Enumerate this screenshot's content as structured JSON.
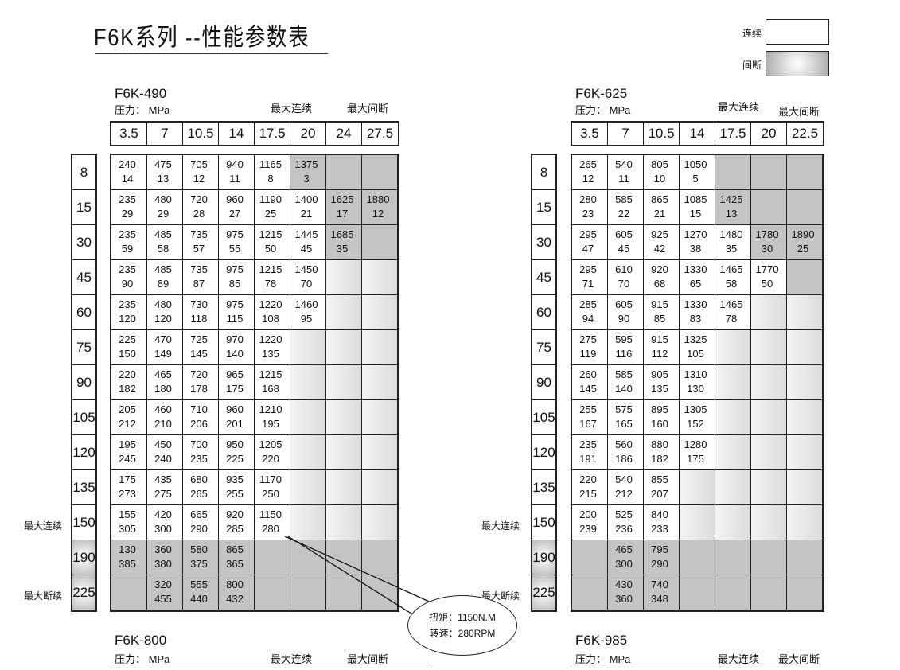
{
  "title": "F6K系列 --性能参数表",
  "legend": {
    "continuous": "连续",
    "intermittent": "间断"
  },
  "pressure_label": "压力： MPa",
  "max_continuous": "最大连续",
  "max_intermittent": "最大间断",
  "side_max_continuous": "最大连续",
  "side_max_intermittent": "最大断续",
  "row_labels": [
    "8",
    "15",
    "30",
    "45",
    "60",
    "75",
    "90",
    "105",
    "120",
    "135",
    "150",
    "190",
    "225"
  ],
  "callout": {
    "torque": "扭矩：1150N.M",
    "speed": "转速：280RPM"
  },
  "tables": [
    {
      "model": "F6K-490",
      "pressures": [
        "3.5",
        "7",
        "10.5",
        "14",
        "17.5",
        "20",
        "24",
        "27.5"
      ],
      "rows": [
        [
          [
            "240",
            "14"
          ],
          [
            "475",
            "13"
          ],
          [
            "705",
            "12"
          ],
          [
            "940",
            "11"
          ],
          [
            "1165",
            "8"
          ],
          [
            "1375",
            "3"
          ],
          null,
          null
        ],
        [
          [
            "235",
            "29"
          ],
          [
            "480",
            "29"
          ],
          [
            "720",
            "28"
          ],
          [
            "960",
            "27"
          ],
          [
            "1190",
            "25"
          ],
          [
            "1400",
            "21"
          ],
          [
            "1625",
            "17"
          ],
          [
            "1880",
            "12"
          ]
        ],
        [
          [
            "235",
            "59"
          ],
          [
            "485",
            "58"
          ],
          [
            "735",
            "57"
          ],
          [
            "975",
            "55"
          ],
          [
            "1215",
            "50"
          ],
          [
            "1445",
            "45"
          ],
          [
            "1685",
            "35"
          ],
          null
        ],
        [
          [
            "235",
            "90"
          ],
          [
            "485",
            "89"
          ],
          [
            "735",
            "87"
          ],
          [
            "975",
            "85"
          ],
          [
            "1215",
            "78"
          ],
          [
            "1450",
            "70"
          ],
          null,
          null
        ],
        [
          [
            "235",
            "120"
          ],
          [
            "480",
            "120"
          ],
          [
            "730",
            "118"
          ],
          [
            "975",
            "115"
          ],
          [
            "1220",
            "108"
          ],
          [
            "1460",
            "95"
          ],
          null,
          null
        ],
        [
          [
            "225",
            "150"
          ],
          [
            "470",
            "149"
          ],
          [
            "725",
            "145"
          ],
          [
            "970",
            "140"
          ],
          [
            "1220",
            "135"
          ],
          null,
          null,
          null
        ],
        [
          [
            "220",
            "182"
          ],
          [
            "465",
            "180"
          ],
          [
            "720",
            "178"
          ],
          [
            "965",
            "175"
          ],
          [
            "1215",
            "168"
          ],
          null,
          null,
          null
        ],
        [
          [
            "205",
            "212"
          ],
          [
            "460",
            "210"
          ],
          [
            "710",
            "206"
          ],
          [
            "960",
            "201"
          ],
          [
            "1210",
            "195"
          ],
          null,
          null,
          null
        ],
        [
          [
            "195",
            "245"
          ],
          [
            "450",
            "240"
          ],
          [
            "700",
            "235"
          ],
          [
            "950",
            "225"
          ],
          [
            "1205",
            "220"
          ],
          null,
          null,
          null
        ],
        [
          [
            "175",
            "273"
          ],
          [
            "435",
            "275"
          ],
          [
            "680",
            "265"
          ],
          [
            "935",
            "255"
          ],
          [
            "1170",
            "250"
          ],
          null,
          null,
          null
        ],
        [
          [
            "155",
            "305"
          ],
          [
            "420",
            "300"
          ],
          [
            "665",
            "290"
          ],
          [
            "920",
            "285"
          ],
          [
            "1150",
            "280"
          ],
          null,
          null,
          null
        ],
        [
          [
            "130",
            "385"
          ],
          [
            "360",
            "380"
          ],
          [
            "580",
            "375"
          ],
          [
            "865",
            "365"
          ],
          null,
          null,
          null,
          null
        ],
        [
          null,
          [
            "320",
            "455"
          ],
          [
            "555",
            "440"
          ],
          [
            "800",
            "432"
          ],
          null,
          null,
          null,
          null
        ]
      ]
    },
    {
      "model": "F6K-625",
      "pressures": [
        "3.5",
        "7",
        "10.5",
        "14",
        "17.5",
        "20",
        "22.5"
      ],
      "rows": [
        [
          [
            "265",
            "12"
          ],
          [
            "540",
            "11"
          ],
          [
            "805",
            "10"
          ],
          [
            "1050",
            "5"
          ],
          null,
          null,
          null
        ],
        [
          [
            "280",
            "23"
          ],
          [
            "585",
            "22"
          ],
          [
            "865",
            "21"
          ],
          [
            "1085",
            "15"
          ],
          [
            "1425",
            "13"
          ],
          null,
          null
        ],
        [
          [
            "295",
            "47"
          ],
          [
            "605",
            "45"
          ],
          [
            "925",
            "42"
          ],
          [
            "1270",
            "38"
          ],
          [
            "1480",
            "35"
          ],
          [
            "1780",
            "30"
          ],
          [
            "1890",
            "25"
          ]
        ],
        [
          [
            "295",
            "71"
          ],
          [
            "610",
            "70"
          ],
          [
            "920",
            "68"
          ],
          [
            "1330",
            "65"
          ],
          [
            "1465",
            "58"
          ],
          [
            "1770",
            "50"
          ],
          null
        ],
        [
          [
            "285",
            "94"
          ],
          [
            "605",
            "90"
          ],
          [
            "915",
            "85"
          ],
          [
            "1330",
            "83"
          ],
          [
            "1465",
            "78"
          ],
          null,
          null
        ],
        [
          [
            "275",
            "119"
          ],
          [
            "595",
            "116"
          ],
          [
            "915",
            "112"
          ],
          [
            "1325",
            "105"
          ],
          null,
          null,
          null
        ],
        [
          [
            "260",
            "145"
          ],
          [
            "585",
            "140"
          ],
          [
            "905",
            "135"
          ],
          [
            "1310",
            "130"
          ],
          null,
          null,
          null
        ],
        [
          [
            "255",
            "167"
          ],
          [
            "575",
            "165"
          ],
          [
            "895",
            "160"
          ],
          [
            "1305",
            "152"
          ],
          null,
          null,
          null
        ],
        [
          [
            "235",
            "191"
          ],
          [
            "560",
            "186"
          ],
          [
            "880",
            "182"
          ],
          [
            "1280",
            "175"
          ],
          null,
          null,
          null
        ],
        [
          [
            "220",
            "215"
          ],
          [
            "540",
            "212"
          ],
          [
            "855",
            "207"
          ],
          null,
          null,
          null,
          null
        ],
        [
          [
            "200",
            "239"
          ],
          [
            "525",
            "236"
          ],
          [
            "840",
            "233"
          ],
          null,
          null,
          null,
          null
        ],
        [
          null,
          [
            "465",
            "300"
          ],
          [
            "795",
            "290"
          ],
          null,
          null,
          null,
          null
        ],
        [
          null,
          [
            "430",
            "360"
          ],
          [
            "740",
            "348"
          ],
          null,
          null,
          null,
          null
        ]
      ]
    }
  ],
  "next_models": [
    "F6K-800",
    "F6K-985"
  ]
}
